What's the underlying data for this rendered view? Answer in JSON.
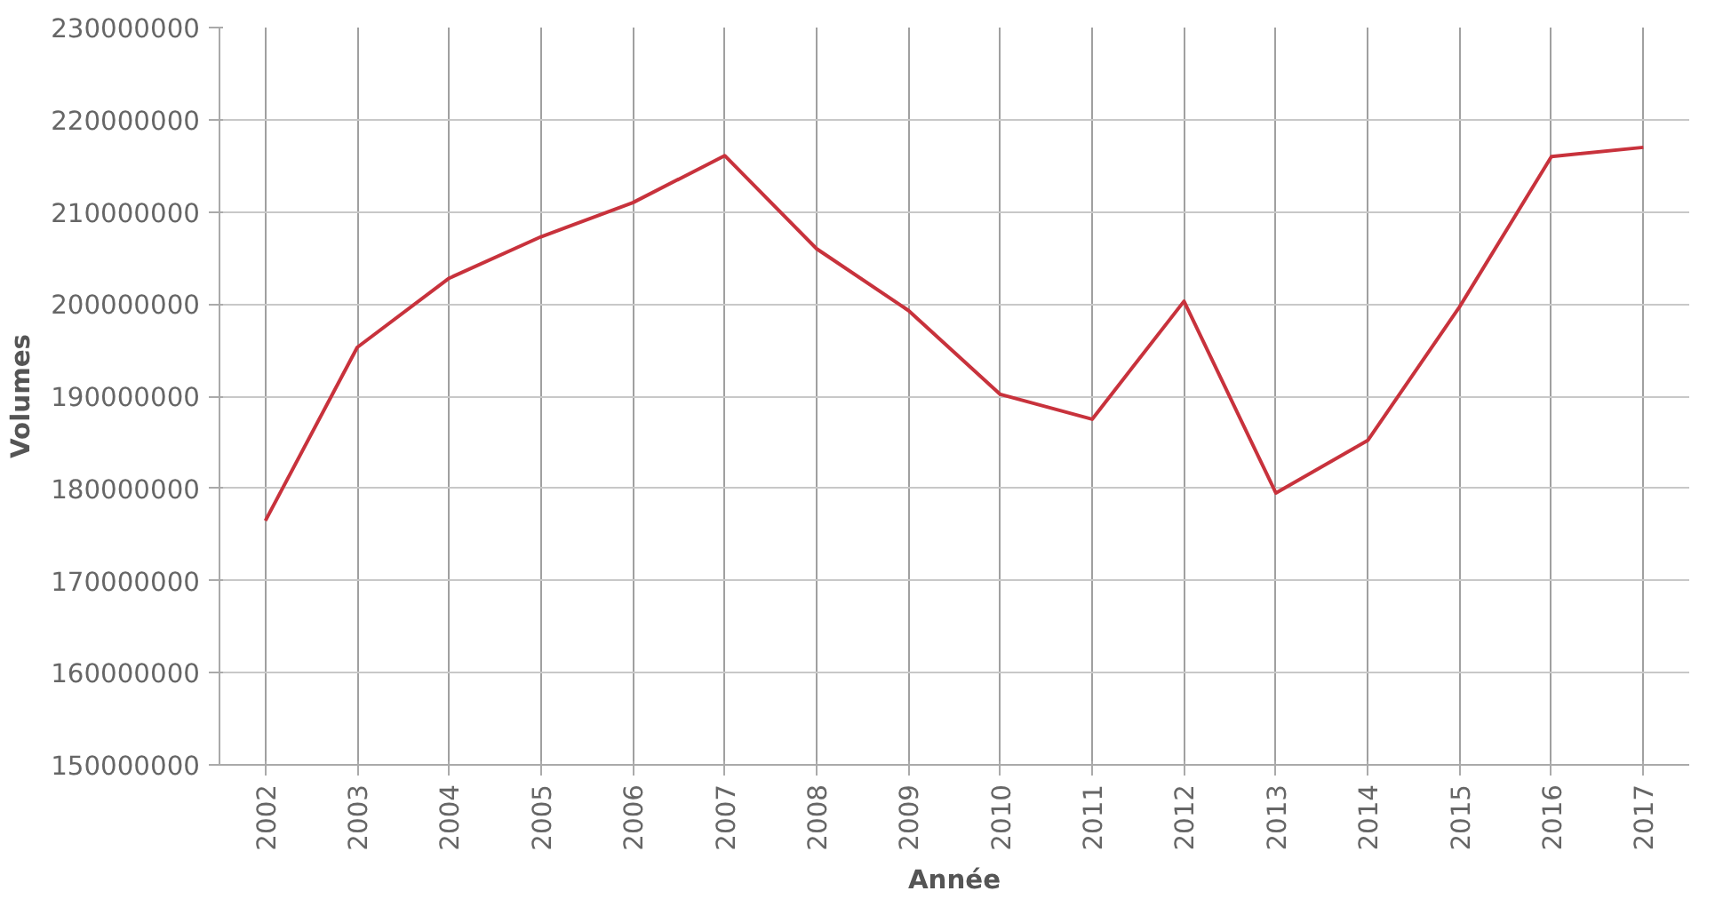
{
  "chart_data": {
    "type": "line",
    "xlabel": "Année",
    "ylabel": "Volumes",
    "categories": [
      "2002",
      "2003",
      "2004",
      "2005",
      "2006",
      "2007",
      "2008",
      "2009",
      "2010",
      "2011",
      "2012",
      "2013",
      "2014",
      "2015",
      "2016",
      "2017"
    ],
    "series": [
      {
        "color": "#c8323c",
        "values": [
          176500000,
          195300000,
          202800000,
          207300000,
          211000000,
          216100000,
          206000000,
          199300000,
          190200000,
          187500000,
          200300000,
          179500000,
          185200000,
          199700000,
          216000000,
          217000000
        ]
      }
    ],
    "ylim": [
      150000000,
      230000000
    ],
    "yticks": [
      150000000,
      160000000,
      170000000,
      180000000,
      190000000,
      200000000,
      210000000,
      220000000,
      230000000
    ],
    "grid": true,
    "marker": "none",
    "line_style": "solid"
  }
}
